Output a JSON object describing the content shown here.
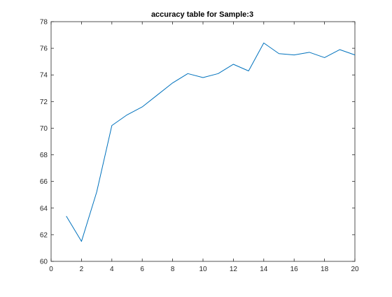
{
  "chart_data": {
    "type": "line",
    "title": "accuracy table for Sample:3",
    "xlabel": "",
    "ylabel": "",
    "xlim": [
      0,
      20
    ],
    "ylim": [
      60,
      78
    ],
    "xticks": [
      0,
      2,
      4,
      6,
      8,
      10,
      12,
      14,
      16,
      18,
      20
    ],
    "yticks": [
      60,
      62,
      64,
      66,
      68,
      70,
      72,
      74,
      76,
      78
    ],
    "grid": false,
    "series": [
      {
        "color": "#0072bd",
        "x": [
          1,
          2,
          3,
          4,
          5,
          6,
          7,
          8,
          9,
          10,
          11,
          12,
          13,
          14,
          15,
          16,
          17,
          18,
          19,
          20
        ],
        "y": [
          63.4,
          61.5,
          65.2,
          70.2,
          71.0,
          71.6,
          72.5,
          73.4,
          74.1,
          73.8,
          74.1,
          74.8,
          74.3,
          76.4,
          75.6,
          75.5,
          75.7,
          75.3,
          75.9,
          75.5
        ]
      }
    ]
  }
}
